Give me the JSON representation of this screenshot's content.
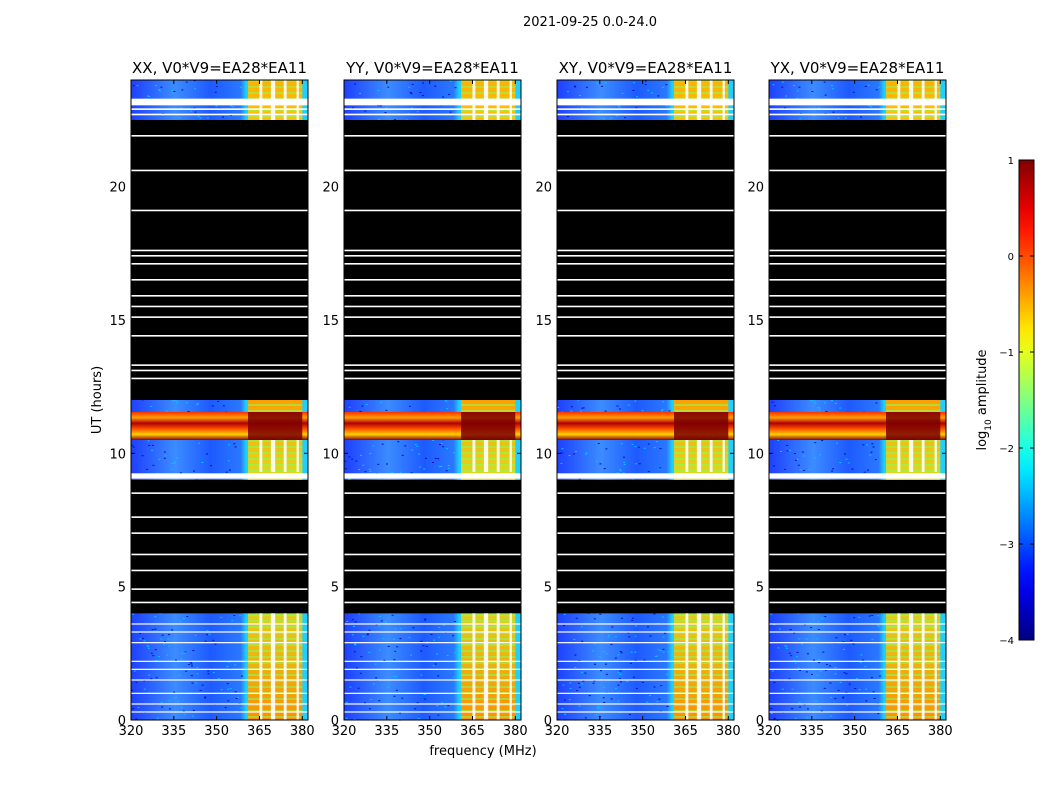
{
  "figure_title": "2021-09-25 0.0-24.0",
  "chart_data": {
    "type": "heatmap",
    "title": "2021-09-25 0.0-24.0",
    "xlabel": "frequency (MHz)",
    "ylabel": "UT (hours)",
    "xlim": [
      320,
      382
    ],
    "ylim": [
      0,
      24
    ],
    "x_ticks": [
      320,
      335,
      350,
      365,
      380
    ],
    "y_ticks": [
      0,
      5,
      10,
      15,
      20
    ],
    "panels": [
      {
        "title": "XX, V0*V9=EA28*EA11"
      },
      {
        "title": "YY, V0*V9=EA28*EA11"
      },
      {
        "title": "XY, V0*V9=EA28*EA11"
      },
      {
        "title": "YX, V0*V9=EA28*EA11"
      }
    ],
    "strong_band_mhz": [
      361,
      380
    ],
    "blanked_mhz": [
      [
        365,
        366
      ],
      [
        369,
        370.5
      ],
      [
        373.5,
        374.5
      ],
      [
        378,
        378.8
      ]
    ],
    "no_data_hours": [
      [
        4.0,
        9.0
      ],
      [
        12.0,
        22.5
      ]
    ],
    "flagged_hours": [
      22.7,
      22.9,
      21.9,
      20.6,
      19.1,
      17.6,
      17.4,
      17.1,
      16.5,
      15.9,
      15.5,
      15.1,
      14.4,
      13.3,
      13.1,
      12.8,
      8.5,
      7.6,
      7.0,
      6.2,
      5.6,
      4.9,
      4.4
    ],
    "rfi_hours": [
      [
        10.5,
        11.55
      ]
    ],
    "blank_hours": [
      [
        9.05,
        9.25
      ],
      [
        23.05,
        23.3
      ]
    ],
    "colorbar": {
      "label_prefix": "log",
      "label_sub": "10",
      "label_suffix": " amplitude",
      "range": [
        -4,
        1
      ],
      "ticks": [
        "1",
        "0",
        "−1",
        "−2",
        "−3",
        "−4"
      ],
      "colormap": "jet"
    }
  }
}
